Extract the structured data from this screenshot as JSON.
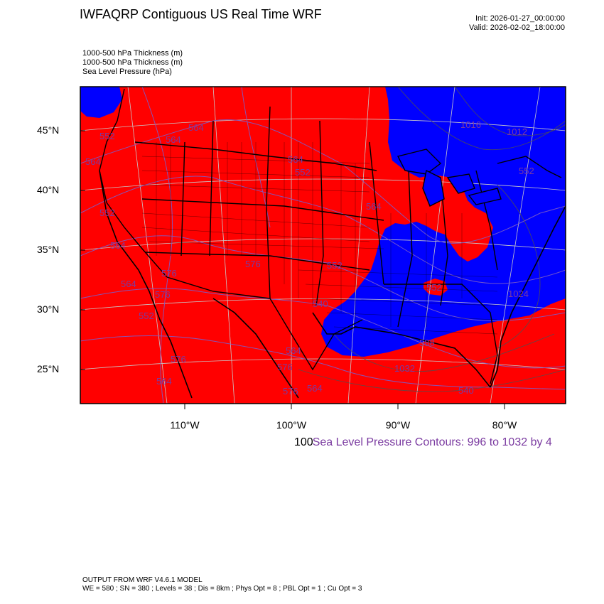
{
  "header": {
    "title": "IWFAQRP Contiguous US Real Time WRF",
    "init": "Init: 2026-01-27_00:00:00",
    "valid": "Valid: 2026-02-02_18:00:00"
  },
  "fields": [
    "1000-500 hPa Thickness   (m)",
    "1000-500 hPa Thickness   (m)",
    "Sea Level Pressure   (hPa)"
  ],
  "axes": {
    "lat_labels": [
      "45°N",
      "40°N",
      "35°N",
      "30°N",
      "25°N"
    ],
    "lon_labels": [
      "110°W",
      "100°W",
      "90°W",
      "80°W"
    ]
  },
  "contour_info": {
    "overlap_text": "100",
    "text": "Sea Level Pressure Contours: 996 to 1032 by 4"
  },
  "map_labels": {
    "thickness": [
      "552",
      "564",
      "564",
      "564",
      "564",
      "552",
      "564",
      "552",
      "564",
      "576",
      "576",
      "552",
      "564",
      "576",
      "540",
      "552",
      "564",
      "576",
      "576",
      "552",
      "588",
      "564",
      "576",
      "564",
      "540",
      "552",
      "576",
      "552",
      "564",
      "540",
      "576",
      "564",
      "552",
      "576",
      "564",
      "552",
      "552",
      "540",
      "552",
      "564",
      "540",
      "576",
      "540",
      "540",
      "552"
    ],
    "pressure": [
      "1016",
      "1024",
      "1032",
      "1012"
    ]
  },
  "colors": {
    "warm": "#ff0000",
    "cold": "#0000ff",
    "contour_thickness": "#7b5cc8",
    "contour_pressure": "#555555",
    "contour_label_color": "#7a3aa0"
  },
  "footer": {
    "line1": "OUTPUT FROM WRF V4.6.1 MODEL",
    "line2": "WE = 580 ; SN = 380 ; Levels = 38 ; Dis = 8km ; Phys Opt = 8 ; PBL Opt = 1 ; Cu Opt = 3"
  }
}
